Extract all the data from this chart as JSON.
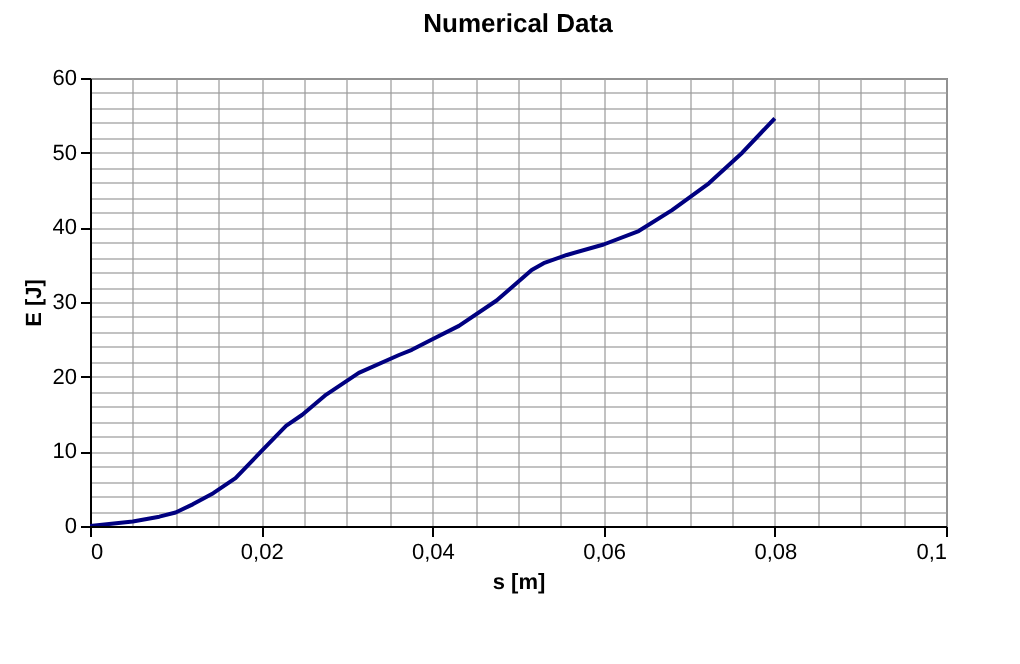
{
  "chart_data": {
    "type": "line",
    "title": "Numerical Data",
    "xlabel": "s [m]",
    "ylabel": "E [J]",
    "x": [
      0,
      0.005,
      0.0081,
      0.01,
      0.012,
      0.0144,
      0.017,
      0.02,
      0.0229,
      0.0248,
      0.0276,
      0.0314,
      0.0361,
      0.0376,
      0.04,
      0.0431,
      0.0475,
      0.0516,
      0.053,
      0.0557,
      0.06,
      0.0641,
      0.068,
      0.0723,
      0.0762,
      0.08
    ],
    "series": [
      {
        "color": "#000080",
        "values": [
          0,
          0.6,
          1.25,
          1.8,
          2.9,
          4.4,
          6.4,
          10,
          13.4,
          14.9,
          17.6,
          20.5,
          22.9,
          23.6,
          25,
          26.8,
          30.2,
          34.3,
          35.2,
          36.3,
          37.7,
          39.5,
          42.3,
          45.9,
          50,
          54.6
        ]
      }
    ],
    "xlim": [
      0,
      0.1
    ],
    "ylim": [
      0,
      60
    ],
    "xticks": [
      0,
      {
        "value": 0.005,
        "label": null
      },
      {
        "value": 0.01,
        "label": null
      },
      {
        "value": 0.015,
        "label": null
      },
      {
        "value": 0.02,
        "label": "0,02"
      },
      {
        "value": 0.025,
        "label": null
      },
      {
        "value": 0.03,
        "label": null
      },
      {
        "value": 0.035,
        "label": null
      },
      {
        "value": 0.04,
        "label": "0,04"
      },
      {
        "value": 0.045,
        "label": null
      },
      {
        "value": 0.05,
        "label": null
      },
      {
        "value": 0.055,
        "label": null
      },
      {
        "value": 0.06,
        "label": "0,06"
      },
      {
        "value": 0.065,
        "label": null
      },
      {
        "value": 0.07,
        "label": null
      },
      {
        "value": 0.075,
        "label": null
      },
      {
        "value": 0.08,
        "label": "0,08"
      },
      {
        "value": 0.085,
        "label": null
      },
      {
        "value": 0.09,
        "label": null
      },
      {
        "value": 0.095,
        "label": null
      },
      {
        "value": 0.1,
        "label": "0,1"
      }
    ],
    "yticks": [
      0,
      {
        "value": 2,
        "label": null
      },
      {
        "value": 4,
        "label": null
      },
      {
        "value": 6,
        "label": null
      },
      {
        "value": 8,
        "label": null
      },
      10,
      {
        "value": 12,
        "label": null
      },
      {
        "value": 14,
        "label": null
      },
      {
        "value": 16,
        "label": null
      },
      {
        "value": 18,
        "label": null
      },
      20,
      {
        "value": 22,
        "label": null
      },
      {
        "value": 24,
        "label": null
      },
      {
        "value": 26,
        "label": null
      },
      {
        "value": 28,
        "label": null
      },
      30,
      {
        "value": 32,
        "label": null
      },
      {
        "value": 34,
        "label": null
      },
      {
        "value": 36,
        "label": null
      },
      {
        "value": 38,
        "label": null
      },
      40,
      {
        "value": 42,
        "label": null
      },
      {
        "value": 44,
        "label": null
      },
      {
        "value": 46,
        "label": null
      },
      {
        "value": 48,
        "label": null
      },
      50,
      {
        "value": 52,
        "label": null
      },
      {
        "value": 54,
        "label": null
      },
      {
        "value": 56,
        "label": null
      },
      {
        "value": 58,
        "label": null
      },
      60
    ],
    "grid": true,
    "marker": "none",
    "line_style": "solid"
  }
}
